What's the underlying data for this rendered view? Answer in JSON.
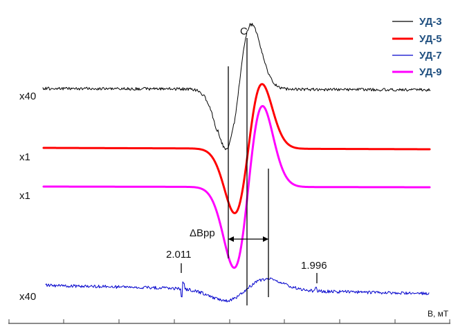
{
  "chart_data": {
    "type": "line",
    "xlabel": "B, мТ",
    "x_ticks": [
      "",
      "",
      "",
      "",
      "",
      "",
      "",
      ""
    ],
    "legend": [
      "УД-3",
      "УД-5",
      "УД-7",
      "УД-9"
    ],
    "scale_labels": {
      "ud3": "x40",
      "ud5": "x1",
      "ud9": "x1",
      "ud7": "x40"
    },
    "annotations": {
      "c_star": "C",
      "c_star_sup": "*",
      "delta_bpp": "ΔBpp",
      "g_left": "2.011",
      "g_right": "1.996"
    },
    "series": [
      {
        "name": "УД-3",
        "color": "#000000",
        "style": "noisy-derivative",
        "peak_position": "left of C*",
        "trough_position": "right of C*"
      },
      {
        "name": "УД-5",
        "color": "#ff0000",
        "style": "smooth-derivative",
        "peak_position": "left",
        "trough_position": "right"
      },
      {
        "name": "УД-7",
        "color": "#0000cc",
        "style": "noisy-derivative",
        "peak_position": "left",
        "trough_position": "right"
      },
      {
        "name": "УД-9",
        "color": "#ff00ff",
        "style": "smooth-derivative",
        "peak_position": "left",
        "trough_position": "right"
      }
    ],
    "legend_position": "top-right",
    "grid": false,
    "axes_visible": "x-only"
  }
}
